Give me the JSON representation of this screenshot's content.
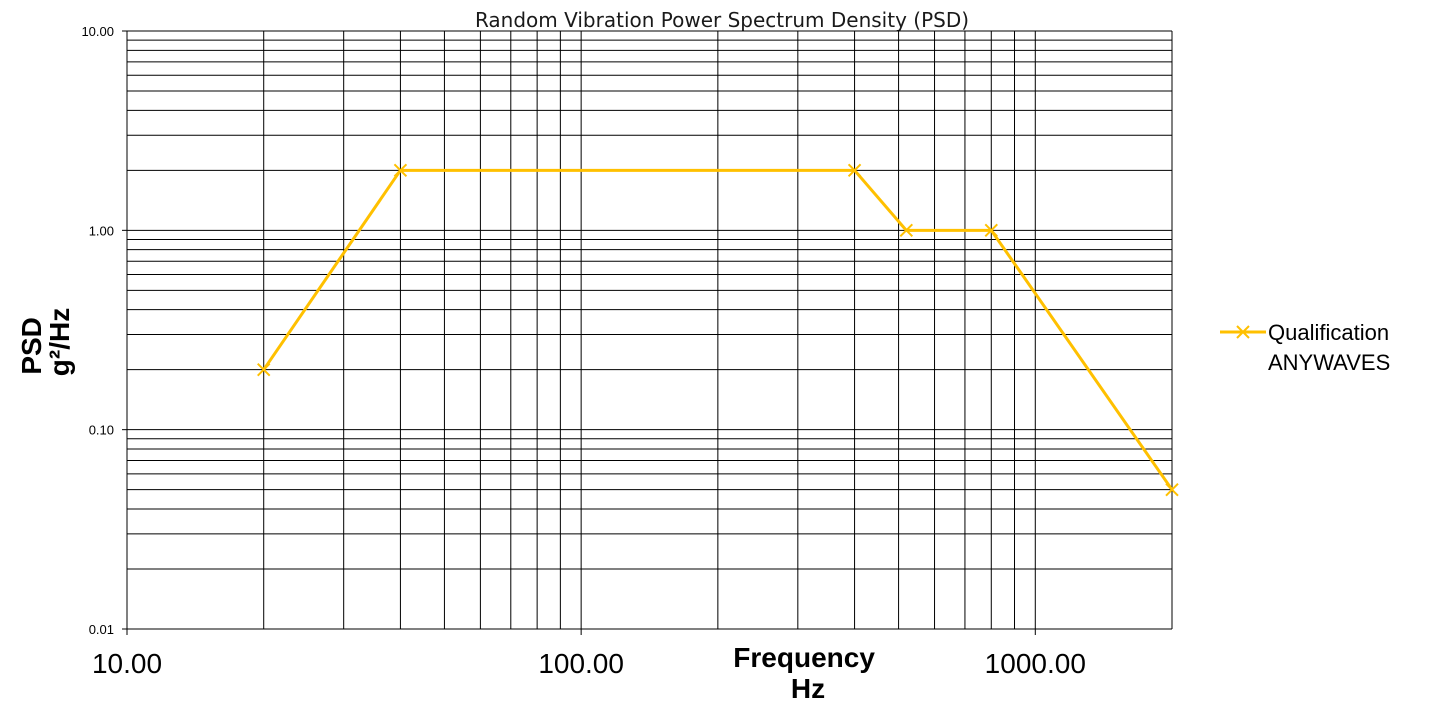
{
  "chart_data": {
    "type": "line",
    "title": "Random Vibration Power Spectrum Density (PSD)",
    "xlabel": [
      "Frequency",
      "Hz"
    ],
    "ylabel": [
      "PSD",
      "g²/Hz"
    ],
    "xscale": "log",
    "yscale": "log",
    "xlim": [
      10,
      2000
    ],
    "ylim": [
      0.01,
      10
    ],
    "grid": true,
    "legend_position": "right",
    "x_ticks": [
      10,
      100,
      1000
    ],
    "x_tick_labels": [
      "10.00",
      "100.00",
      "1000.00"
    ],
    "y_ticks": [
      0.01,
      0.1,
      1,
      10
    ],
    "y_tick_labels": [
      "0.01",
      "0.10",
      "1.00",
      "10.00"
    ],
    "series": [
      {
        "name": "Qualification ANYWAVES",
        "legend_lines": [
          "Qualification",
          "ANYWAVES"
        ],
        "color": "#FFC000",
        "marker": "x",
        "x": [
          20,
          40,
          400,
          520,
          800,
          2000
        ],
        "y": [
          0.2,
          2,
          2,
          1,
          1,
          0.05
        ]
      }
    ]
  }
}
